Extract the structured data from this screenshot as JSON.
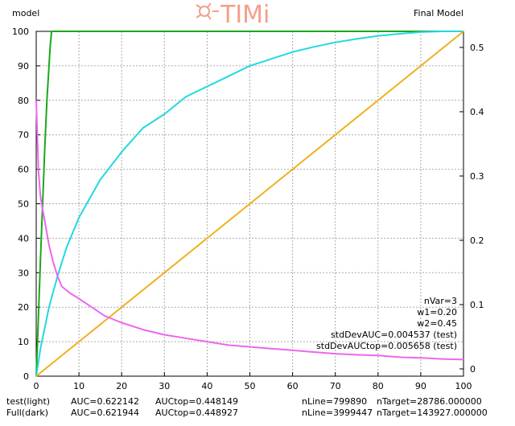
{
  "header": {
    "left_label": "model",
    "right_label": "Final Model",
    "logo_text": "TIMi"
  },
  "annotations": {
    "nvar": "nVar=3",
    "w1": "w1=0.20",
    "w2": "w2=0.45",
    "std_auc": "stdDevAUC=0.004537 (test)",
    "std_auctop": "stdDevAUCtop=0.005658 (test)"
  },
  "footer": {
    "rows": [
      {
        "label": "test(light)",
        "auc": "AUC=0.622142",
        "auctop": "AUCtop=0.448149",
        "nline": "nLine=799890",
        "ntarget": "nTarget=28786.000000"
      },
      {
        "label": "Full(dark)",
        "auc": "AUC=0.621944",
        "auctop": "AUCtop=0.448927",
        "nline": "nLine=3999447",
        "ntarget": "nTarget=143927.000000"
      }
    ]
  },
  "colors": {
    "green": "#1aa81a",
    "cyan": "#22d8e0",
    "orange": "#f0b020",
    "pink": "#ee66ee",
    "grid": "#aaaaaa",
    "logo": "#f2a08a"
  },
  "chart_data": {
    "type": "line",
    "xlim": [
      0,
      100
    ],
    "ylim": [
      0,
      100
    ],
    "y2lim": [
      -0.0113,
      0.525
    ],
    "x_ticks": [
      "0",
      "10",
      "20",
      "30",
      "40",
      "50",
      "60",
      "70",
      "80",
      "90",
      "100"
    ],
    "y_ticks": [
      "0",
      "10",
      "20",
      "30",
      "40",
      "50",
      "60",
      "70",
      "80",
      "90",
      "100"
    ],
    "y2_ticks": [
      "0",
      "0.1",
      "0.2",
      "0.3",
      "0.4",
      "0.5"
    ],
    "series": [
      {
        "color_key": "green",
        "axis": "left",
        "points": [
          [
            0,
            0
          ],
          [
            0.5,
            17
          ],
          [
            1,
            34
          ],
          [
            1.5,
            50
          ],
          [
            2,
            66
          ],
          [
            2.5,
            80
          ],
          [
            3,
            90
          ],
          [
            3.3,
            96
          ],
          [
            3.6,
            100
          ],
          [
            100,
            100
          ]
        ]
      },
      {
        "color_key": "cyan",
        "axis": "left",
        "points": [
          [
            0,
            0
          ],
          [
            1,
            8
          ],
          [
            2,
            14
          ],
          [
            3,
            20
          ],
          [
            5,
            29
          ],
          [
            7,
            37
          ],
          [
            10,
            46
          ],
          [
            15,
            57
          ],
          [
            20,
            65
          ],
          [
            25,
            72
          ],
          [
            30,
            76
          ],
          [
            35,
            81
          ],
          [
            40,
            84
          ],
          [
            45,
            87
          ],
          [
            50,
            90
          ],
          [
            55,
            92
          ],
          [
            60,
            94
          ],
          [
            65,
            95.5
          ],
          [
            70,
            96.8
          ],
          [
            75,
            97.8
          ],
          [
            80,
            98.7
          ],
          [
            85,
            99.3
          ],
          [
            90,
            99.8
          ],
          [
            95,
            100
          ],
          [
            100,
            100
          ]
        ]
      },
      {
        "color_key": "orange",
        "axis": "left",
        "points": [
          [
            0,
            0
          ],
          [
            100,
            100
          ]
        ]
      },
      {
        "color_key": "pink",
        "axis": "left",
        "points": [
          [
            0,
            80
          ],
          [
            0.5,
            60
          ],
          [
            1,
            52
          ],
          [
            2,
            45
          ],
          [
            3,
            38
          ],
          [
            4,
            33
          ],
          [
            5,
            29
          ],
          [
            6,
            26
          ],
          [
            8,
            24
          ],
          [
            10,
            22.5
          ],
          [
            13,
            20
          ],
          [
            16,
            17.5
          ],
          [
            20,
            15.5
          ],
          [
            25,
            13.5
          ],
          [
            30,
            12
          ],
          [
            35,
            11
          ],
          [
            40,
            10
          ],
          [
            45,
            9
          ],
          [
            50,
            8.5
          ],
          [
            55,
            8
          ],
          [
            60,
            7.5
          ],
          [
            65,
            7
          ],
          [
            70,
            6.5
          ],
          [
            75,
            6.2
          ],
          [
            80,
            6
          ],
          [
            85,
            5.5
          ],
          [
            90,
            5.3
          ],
          [
            95,
            5
          ],
          [
            100,
            4.8
          ]
        ]
      }
    ]
  }
}
